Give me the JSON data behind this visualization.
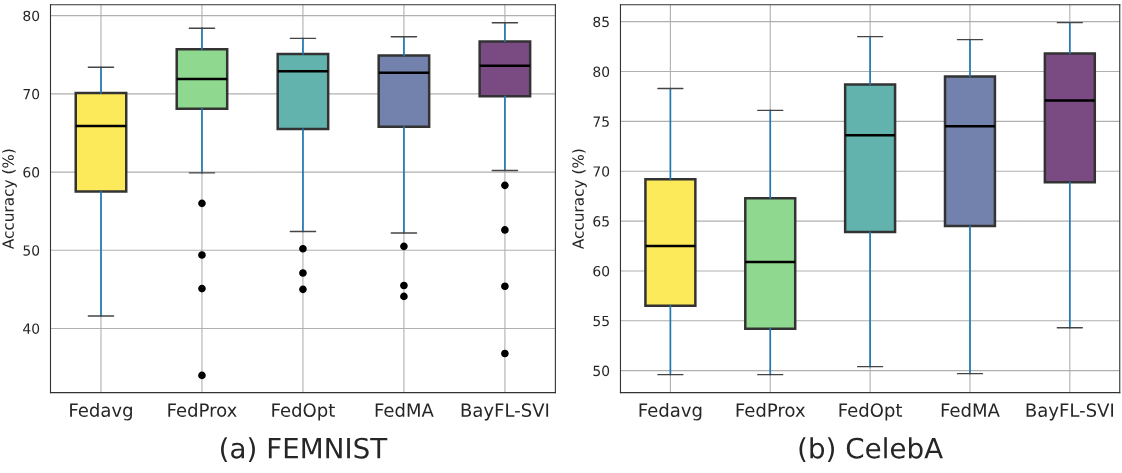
{
  "chart_data": [
    {
      "type": "box",
      "xlabel": "(a) FEMNIST",
      "ylabel": "Accuracy (%)",
      "categories": [
        "Fedavg",
        "FedProx",
        "FedOpt",
        "FedMA",
        "BayFL-SVI"
      ],
      "colors": [
        "#fdea5a",
        "#8fd88f",
        "#62b2ad",
        "#7382ad",
        "#7a4a82"
      ],
      "ylim": [
        31.8,
        81.4
      ],
      "yticks": [
        40,
        50,
        60,
        70,
        80
      ],
      "grid": true,
      "boxes": [
        {
          "low": 41.6,
          "q1": 57.5,
          "median": 65.9,
          "q3": 70.1,
          "high": 73.4
        },
        {
          "low": 59.9,
          "q1": 68.1,
          "median": 71.9,
          "q3": 75.7,
          "high": 78.4,
          "outliers": [
            56.0,
            49.4,
            45.1,
            34.0
          ]
        },
        {
          "low": 52.4,
          "q1": 65.5,
          "median": 72.9,
          "q3": 75.1,
          "high": 77.1,
          "outliers": [
            50.2,
            47.1,
            45.0
          ]
        },
        {
          "low": 52.2,
          "q1": 65.8,
          "median": 72.7,
          "q3": 74.9,
          "high": 77.3,
          "outliers": [
            50.5,
            45.5,
            44.1
          ]
        },
        {
          "low": 60.2,
          "q1": 69.7,
          "median": 73.6,
          "q3": 76.7,
          "high": 79.1,
          "outliers": [
            58.3,
            52.6,
            45.4,
            36.8
          ]
        }
      ]
    },
    {
      "type": "box",
      "xlabel": "(b) CelebA",
      "ylabel": "Accuracy (%)",
      "categories": [
        "Fedavg",
        "FedProx",
        "FedOpt",
        "FedMA",
        "BayFL-SVI"
      ],
      "colors": [
        "#fdea5a",
        "#8fd88f",
        "#62b2ad",
        "#7382ad",
        "#7a4a82"
      ],
      "ylim": [
        47.8,
        86.7
      ],
      "yticks": [
        50,
        55,
        60,
        65,
        70,
        75,
        80,
        85
      ],
      "grid": true,
      "boxes": [
        {
          "low": 49.6,
          "q1": 56.5,
          "median": 62.5,
          "q3": 69.2,
          "high": 78.3
        },
        {
          "low": 49.6,
          "q1": 54.2,
          "median": 60.9,
          "q3": 67.3,
          "high": 76.1
        },
        {
          "low": 50.4,
          "q1": 63.9,
          "median": 73.6,
          "q3": 78.7,
          "high": 83.5
        },
        {
          "low": 49.7,
          "q1": 64.5,
          "median": 74.5,
          "q3": 79.5,
          "high": 83.2
        },
        {
          "low": 54.3,
          "q1": 68.9,
          "median": 77.1,
          "q3": 81.8,
          "high": 84.9
        }
      ]
    }
  ]
}
